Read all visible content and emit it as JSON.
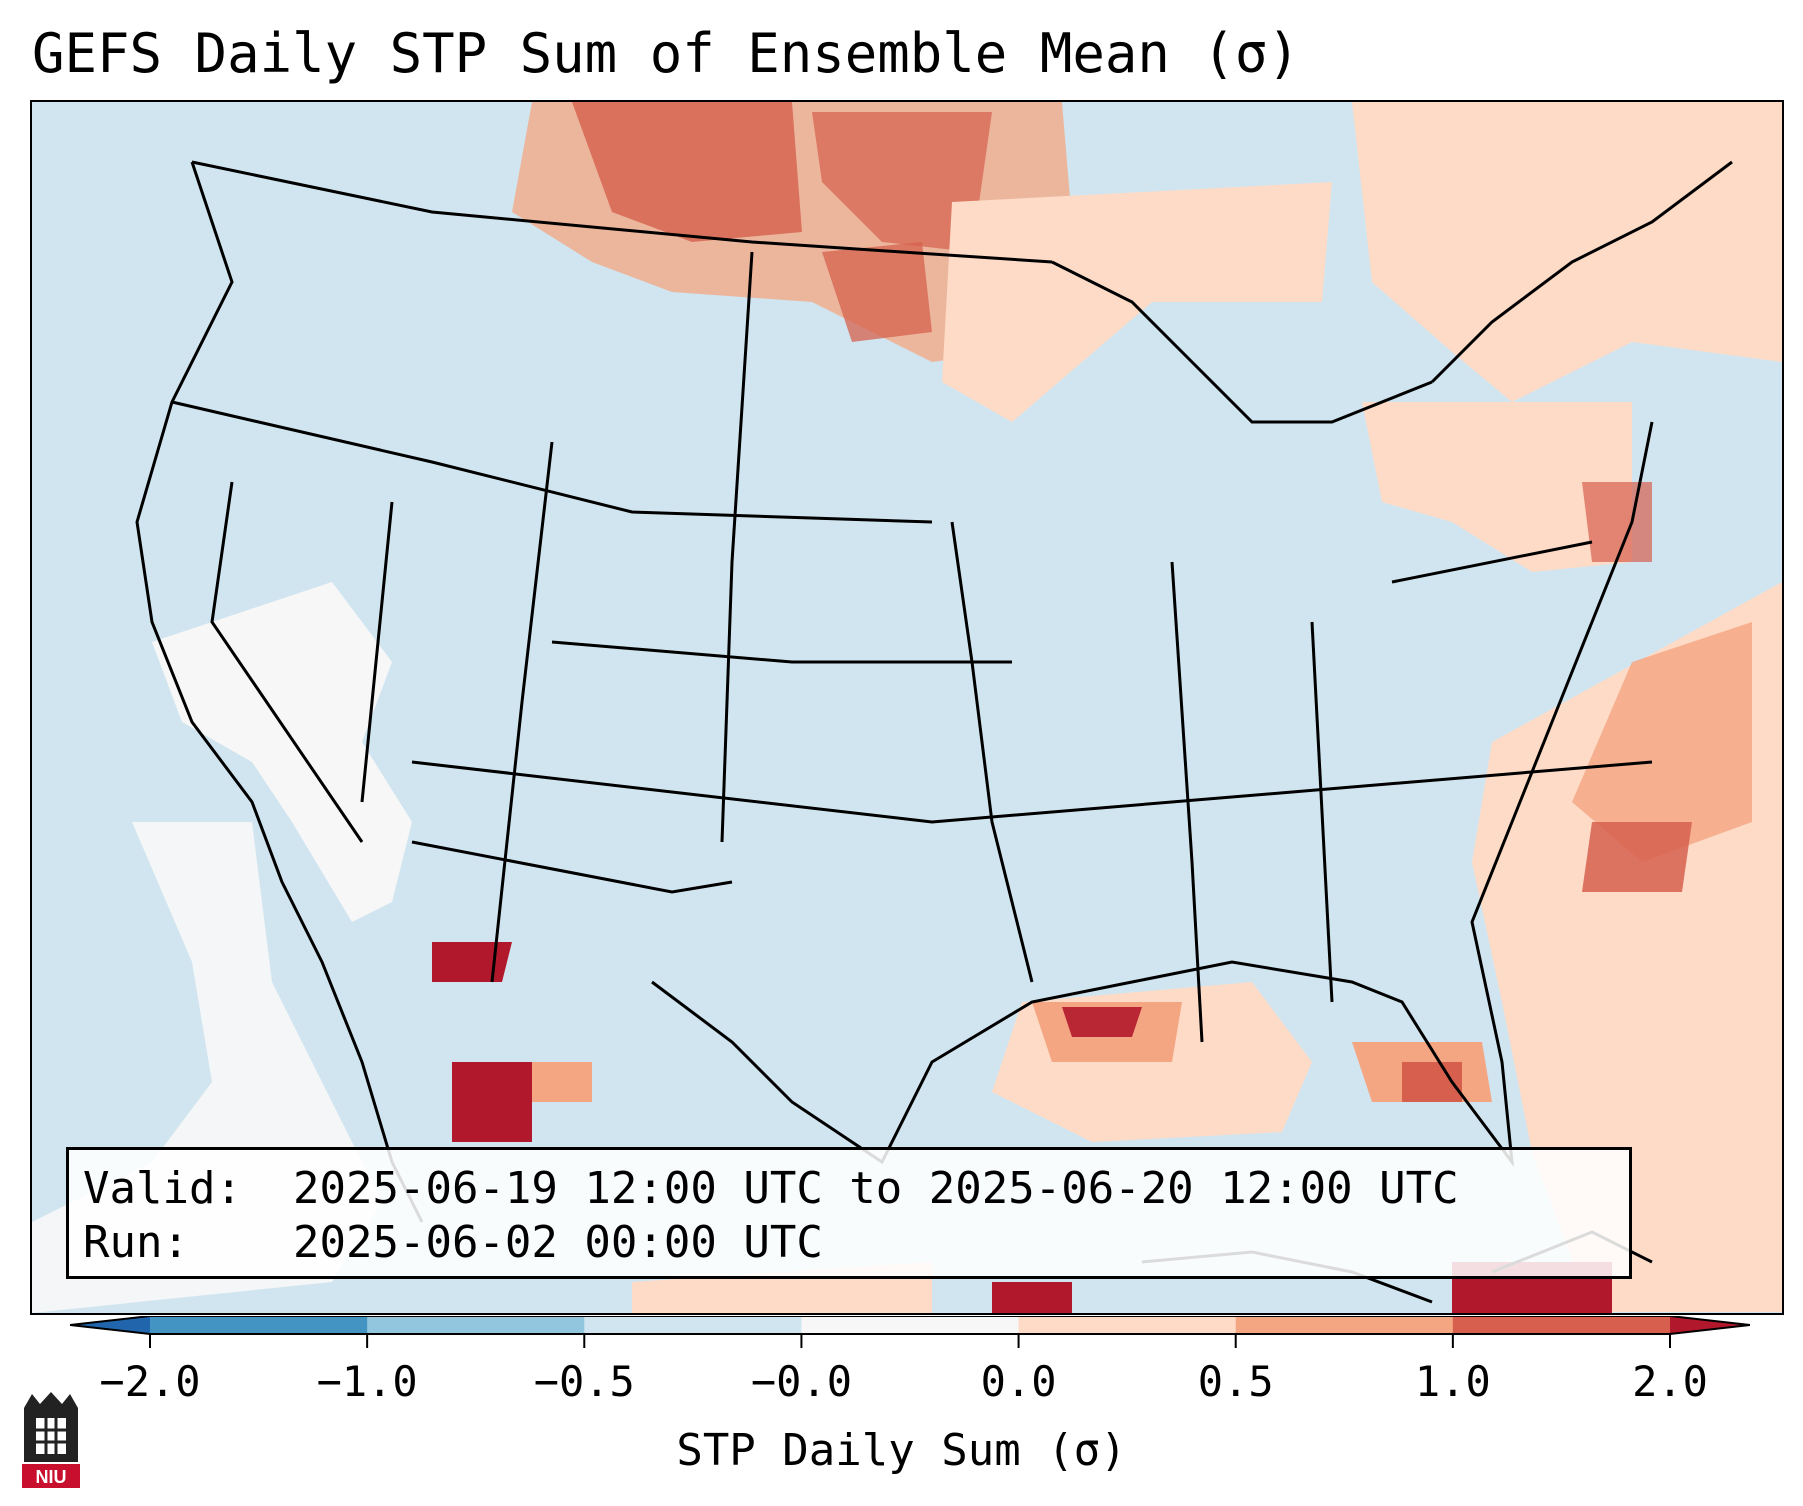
{
  "title": "GEFS Daily STP Sum of Ensemble Mean (σ)",
  "info": {
    "valid_label": "Valid:",
    "valid_value": "2025-06-19 12:00 UTC to 2025-06-20 12:00 UTC",
    "run_label": "Run:",
    "run_value": "2025-06-02 00:00 UTC"
  },
  "colorbar": {
    "label": "STP Daily Sum (σ)",
    "ticks": [
      "−2.0",
      "−1.0",
      "−0.5",
      "−0.0",
      "0.0",
      "0.5",
      "1.0",
      "2.0"
    ],
    "colors": [
      "#2166ac",
      "#4393c3",
      "#92c5de",
      "#d1e5f0",
      "#f7f7f7",
      "#fddbc7",
      "#f4a582",
      "#d6604d",
      "#b2182b"
    ]
  },
  "logo": {
    "text": "NIU"
  },
  "colors": {
    "ocean_background": "#d1e5f0",
    "outline": "#000000"
  }
}
